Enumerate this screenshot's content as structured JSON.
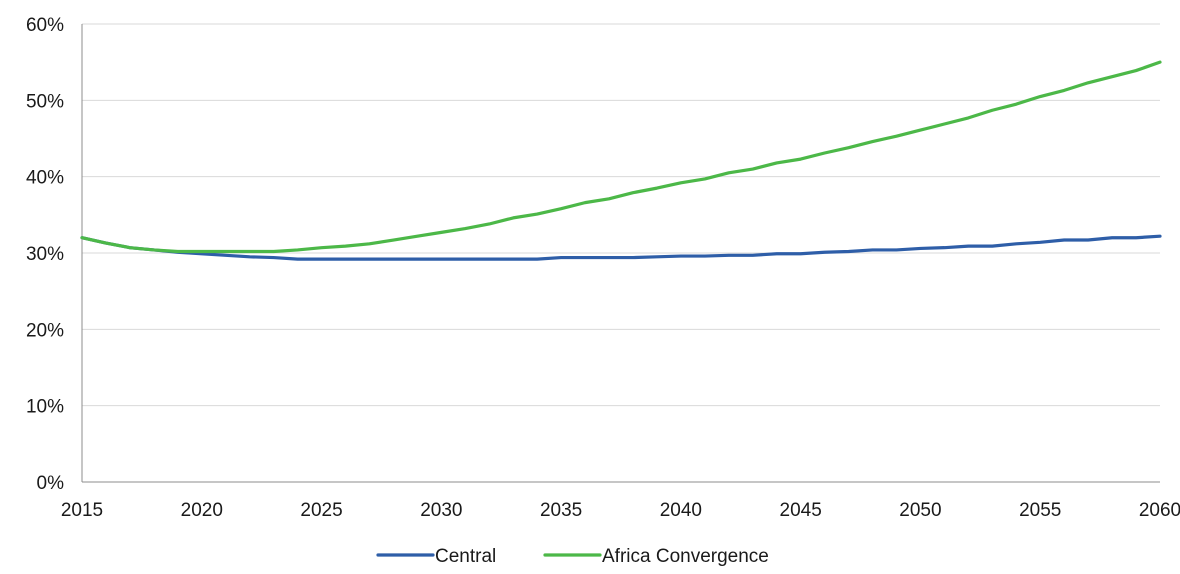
{
  "chart_data": {
    "type": "line",
    "title": "",
    "xlabel": "",
    "ylabel": "",
    "x": [
      2015,
      2016,
      2017,
      2018,
      2019,
      2020,
      2021,
      2022,
      2023,
      2024,
      2025,
      2026,
      2027,
      2028,
      2029,
      2030,
      2031,
      2032,
      2033,
      2034,
      2035,
      2036,
      2037,
      2038,
      2039,
      2040,
      2041,
      2042,
      2043,
      2044,
      2045,
      2046,
      2047,
      2048,
      2049,
      2050,
      2051,
      2052,
      2053,
      2054,
      2055,
      2056,
      2057,
      2058,
      2059,
      2060
    ],
    "xlim": [
      2015,
      2060
    ],
    "x_ticks": [
      "2015",
      "2020",
      "2025",
      "2030",
      "2035",
      "2040",
      "2045",
      "2050",
      "2055",
      "2060"
    ],
    "ylim": [
      0,
      60
    ],
    "y_ticks": [
      "0%",
      "10%",
      "20%",
      "30%",
      "40%",
      "50%",
      "60%"
    ],
    "grid": "horizontal",
    "legend_position": "bottom",
    "series": [
      {
        "name": "Central",
        "color": "#2e5ea8",
        "values": [
          32.0,
          31.3,
          30.7,
          30.4,
          30.1,
          29.9,
          29.7,
          29.5,
          29.4,
          29.2,
          29.2,
          29.2,
          29.2,
          29.2,
          29.2,
          29.2,
          29.2,
          29.2,
          29.2,
          29.2,
          29.4,
          29.4,
          29.4,
          29.4,
          29.5,
          29.6,
          29.6,
          29.7,
          29.7,
          29.9,
          29.9,
          30.1,
          30.2,
          30.4,
          30.4,
          30.6,
          30.7,
          30.9,
          30.9,
          31.2,
          31.4,
          31.7,
          31.7,
          32.0,
          32.0,
          32.2
        ]
      },
      {
        "name": "Africa Convergence",
        "color": "#4cb848",
        "values": [
          32.0,
          31.3,
          30.7,
          30.4,
          30.2,
          30.2,
          30.2,
          30.2,
          30.2,
          30.4,
          30.7,
          30.9,
          31.2,
          31.7,
          32.2,
          32.7,
          33.2,
          33.8,
          34.6,
          35.1,
          35.8,
          36.6,
          37.1,
          37.9,
          38.5,
          39.2,
          39.7,
          40.5,
          41.0,
          41.8,
          42.3,
          43.1,
          43.8,
          44.6,
          45.3,
          46.1,
          46.9,
          47.7,
          48.7,
          49.5,
          50.5,
          51.3,
          52.3,
          53.1,
          53.9,
          55.0
        ]
      }
    ]
  }
}
